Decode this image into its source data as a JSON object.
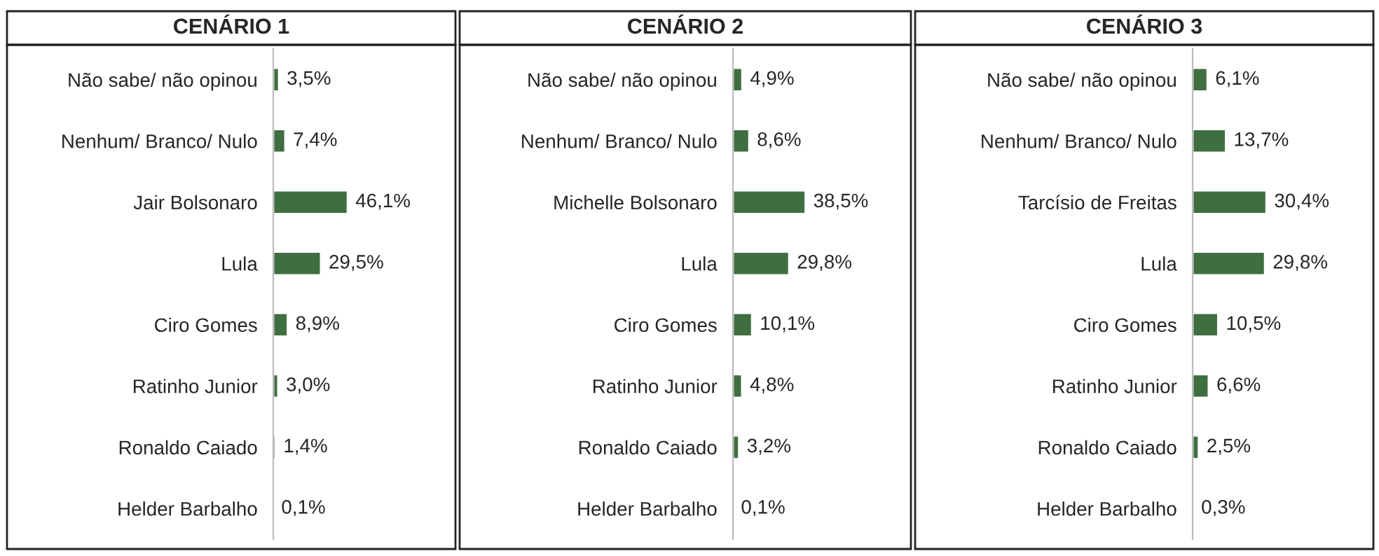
{
  "chart_data": [
    {
      "type": "bar",
      "orientation": "horizontal",
      "title": "CENÁRIO 1",
      "color": "#3f6e40",
      "data_labels": true,
      "categories": [
        "Não sabe/ não opinou",
        "Nenhum/ Branco/ Nulo",
        "Jair Bolsonaro",
        "Lula",
        "Ciro Gomes",
        "Ratinho Junior",
        "Ronaldo Caiado",
        "Helder Barbalho"
      ],
      "values": [
        3.5,
        7.4,
        46.1,
        29.5,
        8.9,
        3.0,
        1.4,
        0.1
      ],
      "value_labels": [
        "3,5%",
        "7,4%",
        "46,1%",
        "29,5%",
        "8,9%",
        "3,0%",
        "1,4%",
        "0,1%"
      ]
    },
    {
      "type": "bar",
      "orientation": "horizontal",
      "title": "CENÁRIO 2",
      "color": "#3f6e40",
      "data_labels": true,
      "categories": [
        "Não sabe/ não opinou",
        "Nenhum/ Branco/ Nulo",
        "Michelle Bolsonaro",
        "Lula",
        "Ciro Gomes",
        "Ratinho Junior",
        "Ronaldo Caiado",
        "Helder Barbalho"
      ],
      "values": [
        4.9,
        8.6,
        38.5,
        29.8,
        10.1,
        4.8,
        3.2,
        0.1
      ],
      "value_labels": [
        "4,9%",
        "8,6%",
        "38,5%",
        "29,8%",
        "10,1%",
        "4,8%",
        "3,2%",
        "0,1%"
      ]
    },
    {
      "type": "bar",
      "orientation": "horizontal",
      "title": "CENÁRIO 3",
      "color": "#3f6e40",
      "data_labels": true,
      "categories": [
        "Não sabe/ não opinou",
        "Nenhum/ Branco/ Nulo",
        "Tarcísio de Freitas",
        "Lula",
        "Ciro Gomes",
        "Ratinho Junior",
        "Ronaldo Caiado",
        "Helder Barbalho"
      ],
      "values": [
        6.1,
        13.7,
        30.4,
        29.8,
        10.5,
        6.6,
        2.5,
        0.3
      ],
      "value_labels": [
        "6,1%",
        "13,7%",
        "30,4%",
        "29,8%",
        "10,5%",
        "6,6%",
        "2,5%",
        "0,3%"
      ]
    }
  ]
}
